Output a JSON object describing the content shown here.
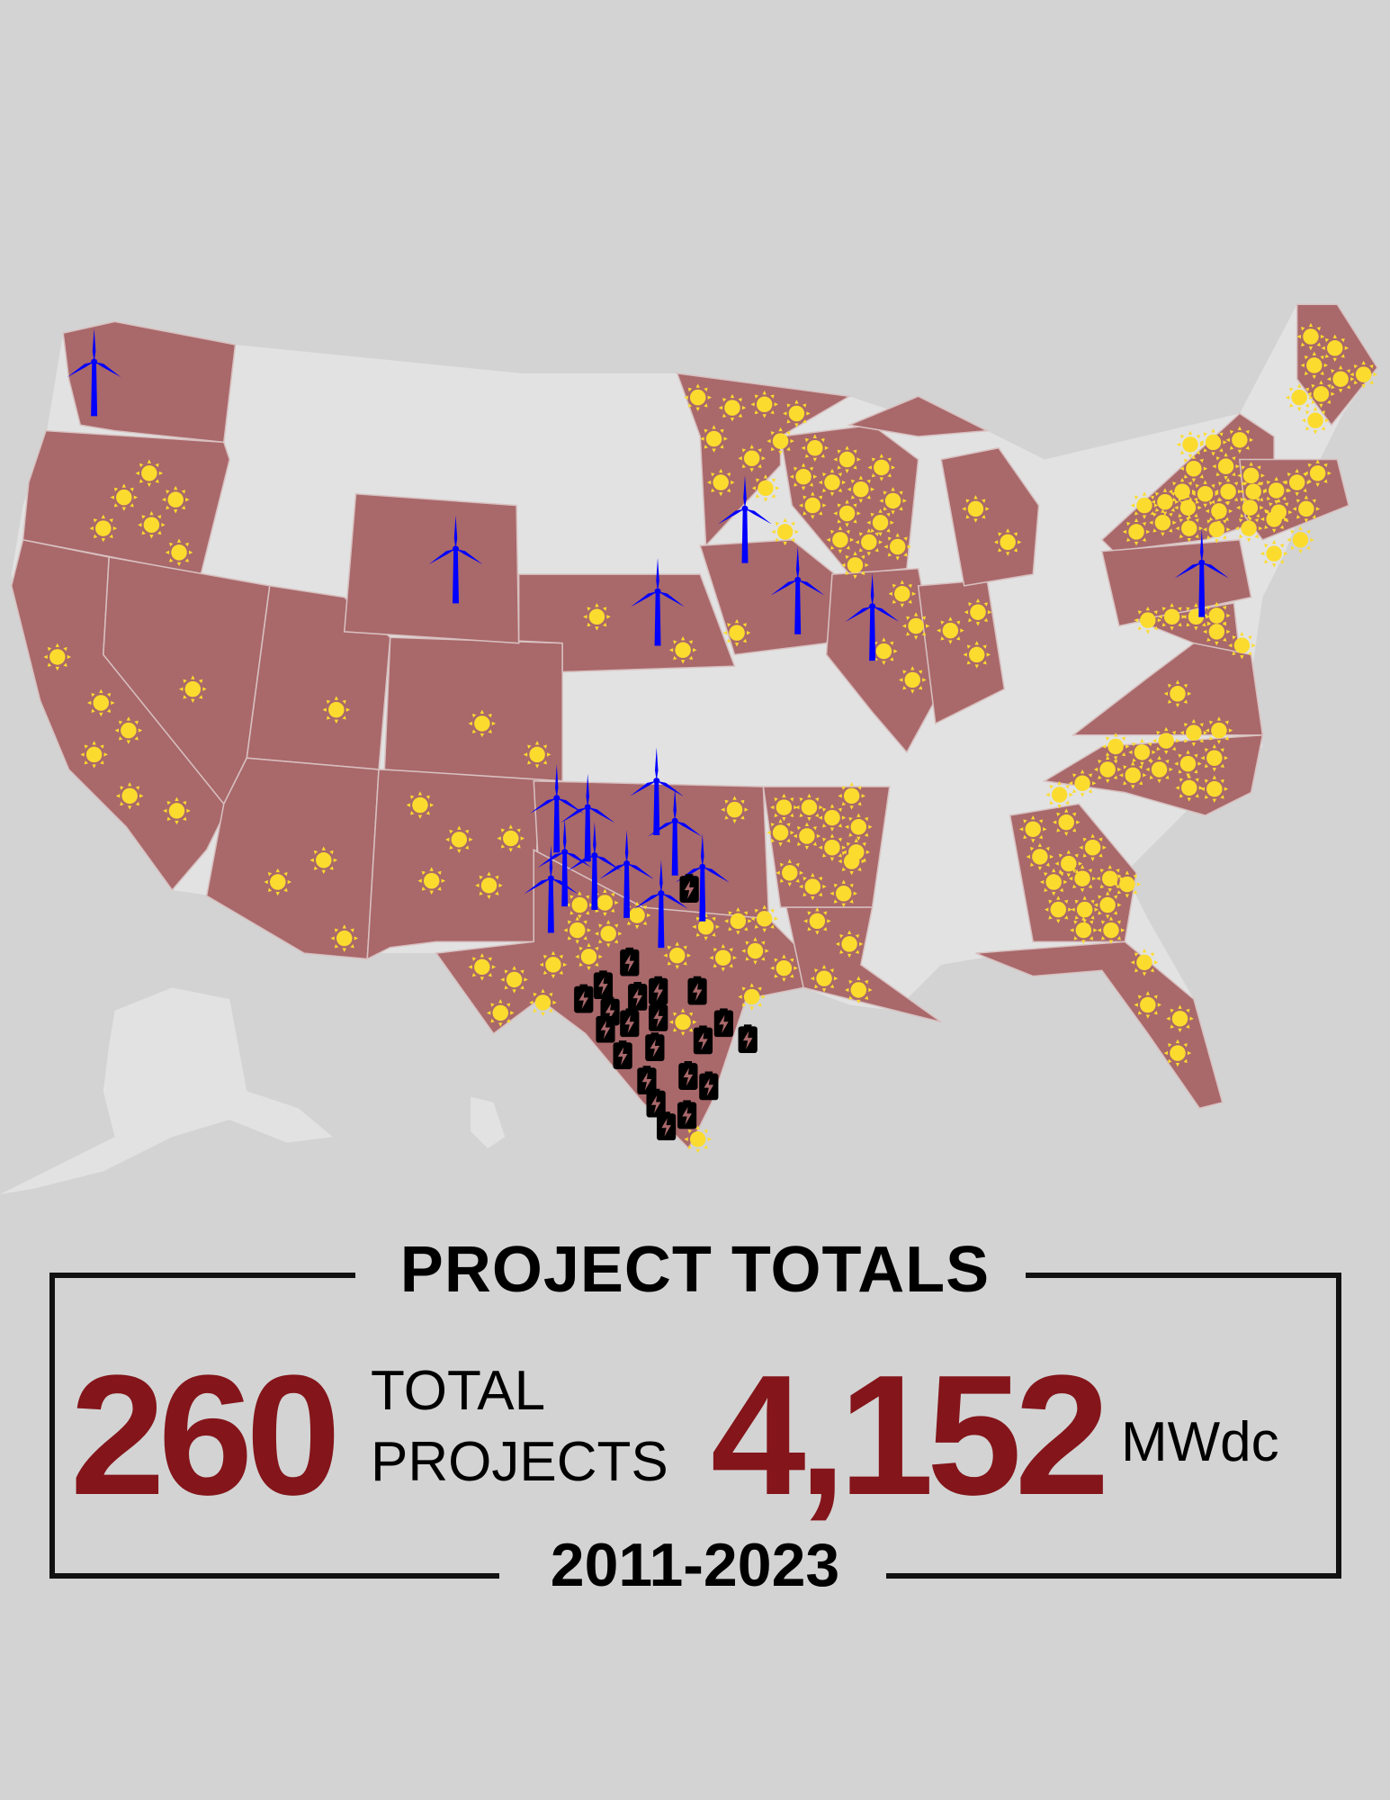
{
  "colors": {
    "background": "#d3d3d3",
    "active_state": "#a9686a",
    "inactive_state": "#e2e2e2",
    "solar": "#fbdc2e",
    "wind": "#0000ff",
    "storage": "#000000",
    "accent": "#84151a"
  },
  "map": {
    "icons": [
      "sun-icon",
      "wind-turbine-icon",
      "battery-icon"
    ]
  },
  "totals": {
    "title": "PROJECT TOTALS",
    "projects_value": "260",
    "projects_label_line1": "TOTAL",
    "projects_label_line2": "PROJECTS",
    "capacity_value": "4,152",
    "capacity_unit": "MWdc",
    "period": "2011-2023"
  }
}
